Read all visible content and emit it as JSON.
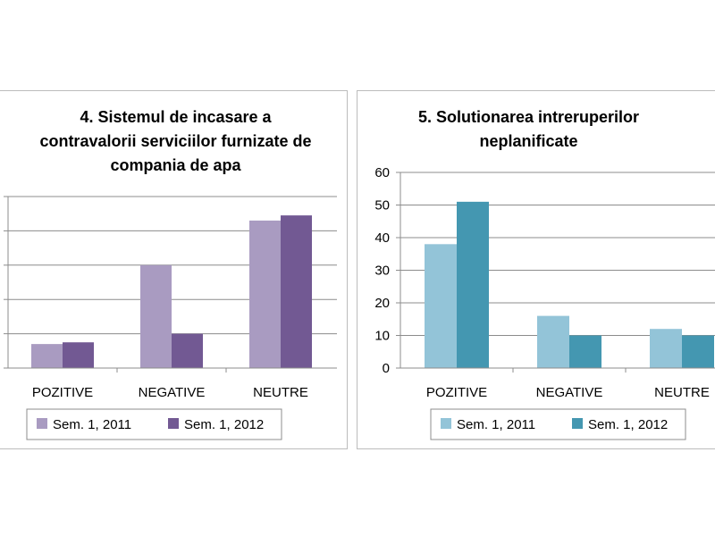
{
  "chart_data": [
    {
      "type": "bar",
      "title": "4. Sistemul de incasare a contravalorii serviciilor furnizate de compania de apa",
      "title_lines": [
        "4. Sistemul de incasare a",
        "contravalorii serviciilor furnizate de",
        "compania de apa"
      ],
      "categories": [
        "POZITIVE",
        "NEGATIVE",
        "NEUTRE"
      ],
      "series": [
        {
          "name": "Sem. 1, 2011",
          "values": [
            7,
            30,
            43
          ],
          "color": "#a99bc1"
        },
        {
          "name": "Sem. 1, 2012",
          "values": [
            7.5,
            10,
            44.5
          ],
          "color": "#725993"
        }
      ],
      "ylim": [
        0,
        50
      ],
      "y_ticks_visible": false,
      "grid": true,
      "legend_position": "bottom"
    },
    {
      "type": "bar",
      "title": "5. Solutionarea intreruperilor neplanificate",
      "title_lines": [
        "5. Solutionarea intreruperilor",
        "neplanificate"
      ],
      "categories": [
        "POZITIVE",
        "NEGATIVE",
        "NEUTRE"
      ],
      "series": [
        {
          "name": "Sem. 1, 2011",
          "values": [
            38,
            16,
            12
          ],
          "color": "#93c4d8"
        },
        {
          "name": "Sem. 1, 2012",
          "values": [
            51,
            10,
            10
          ],
          "color": "#4497b1"
        }
      ],
      "ylim": [
        0,
        60
      ],
      "y_ticks": [
        "0",
        "10",
        "20",
        "30",
        "40",
        "50",
        "60"
      ],
      "y_ticks_visible": true,
      "grid": true,
      "legend_position": "bottom"
    }
  ]
}
